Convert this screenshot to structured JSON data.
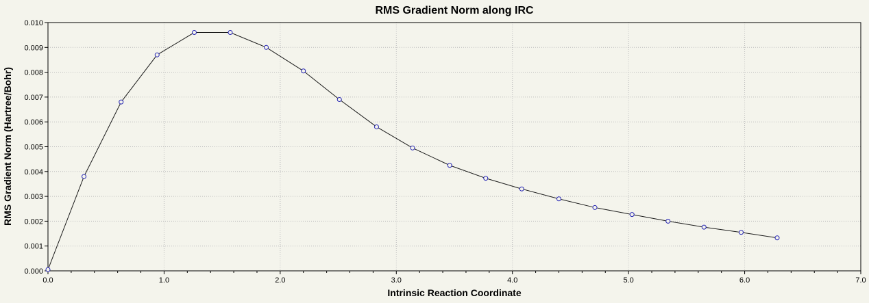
{
  "chart_data": {
    "type": "line",
    "title": "RMS Gradient Norm along IRC",
    "xlabel": "Intrinsic Reaction Coordinate",
    "ylabel": "RMS Gradient Norm (Hartree/Bohr)",
    "xlim": [
      0,
      7
    ],
    "ylim": [
      0,
      0.01
    ],
    "grid": true,
    "legend": "none",
    "x_tick_values": [
      0,
      1,
      2,
      3,
      4,
      5,
      6,
      7
    ],
    "x_tick_labels": [
      "0.0",
      "1.0",
      "2.0",
      "3.0",
      "4.0",
      "5.0",
      "6.0",
      "7.0"
    ],
    "y_tick_values": [
      0,
      0.001,
      0.002,
      0.003,
      0.004,
      0.005,
      0.006,
      0.007,
      0.008,
      0.009,
      0.01
    ],
    "y_tick_labels": [
      "0.000",
      "0.001",
      "0.002",
      "0.003",
      "0.004",
      "0.005",
      "0.006",
      "0.007",
      "0.008",
      "0.009",
      "0.010"
    ],
    "series": [
      {
        "name": "RMS Gradient Norm",
        "x": [
          0.0,
          0.31,
          0.63,
          0.94,
          1.26,
          1.57,
          1.88,
          2.2,
          2.51,
          2.83,
          3.14,
          3.46,
          3.77,
          4.08,
          4.4,
          4.71,
          5.03,
          5.34,
          5.65,
          5.97,
          6.28
        ],
        "y": [
          5e-05,
          0.0038,
          0.0068,
          0.0087,
          0.0096,
          0.0096,
          0.009,
          0.00805,
          0.0069,
          0.0058,
          0.00495,
          0.00425,
          0.00373,
          0.0033,
          0.0029,
          0.00255,
          0.00227,
          0.002,
          0.00176,
          0.00155,
          0.00133
        ]
      }
    ],
    "colors": {
      "background": "#f4f4ec",
      "grid": "#bdbdbd",
      "border": "#000000",
      "line": "#1a1a1a",
      "marker_stroke": "#2424b4",
      "marker_fill": "#f4f4ec"
    }
  }
}
